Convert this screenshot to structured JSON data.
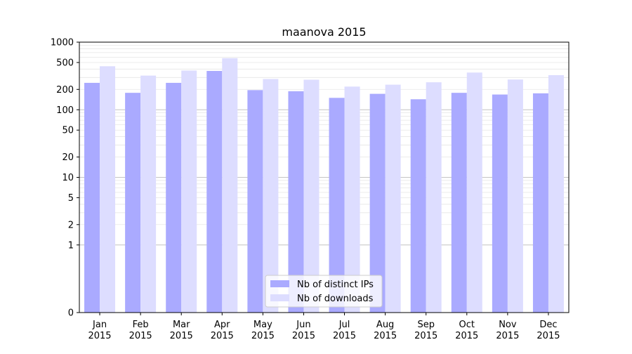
{
  "chart_data": {
    "type": "bar",
    "title": "maanova 2015",
    "xlabel": "",
    "ylabel": "",
    "yscale": "symlog",
    "ylim": [
      0,
      1000
    ],
    "yticks": [
      0,
      1,
      2,
      5,
      10,
      20,
      50,
      100,
      200,
      500,
      1000
    ],
    "ytick_labels": [
      "0",
      "1",
      "2",
      "5",
      "10",
      "20",
      "50",
      "100",
      "200",
      "500",
      "1000"
    ],
    "categories": [
      "Jan\n2015",
      "Feb\n2015",
      "Mar\n2015",
      "Apr\n2015",
      "May\n2015",
      "Jun\n2015",
      "Jul\n2015",
      "Aug\n2015",
      "Sep\n2015",
      "Oct\n2015",
      "Nov\n2015",
      "Dec\n2015"
    ],
    "series": [
      {
        "name": "Nb of distinct IPs",
        "color": "#aaaaff",
        "values": [
          250,
          178,
          250,
          375,
          195,
          188,
          150,
          172,
          143,
          178,
          168,
          175
        ]
      },
      {
        "name": "Nb of downloads",
        "color": "#ddddff",
        "values": [
          440,
          320,
          380,
          580,
          285,
          278,
          220,
          235,
          255,
          355,
          280,
          325
        ]
      }
    ],
    "grid": true,
    "legend_position": "bottom-center"
  }
}
